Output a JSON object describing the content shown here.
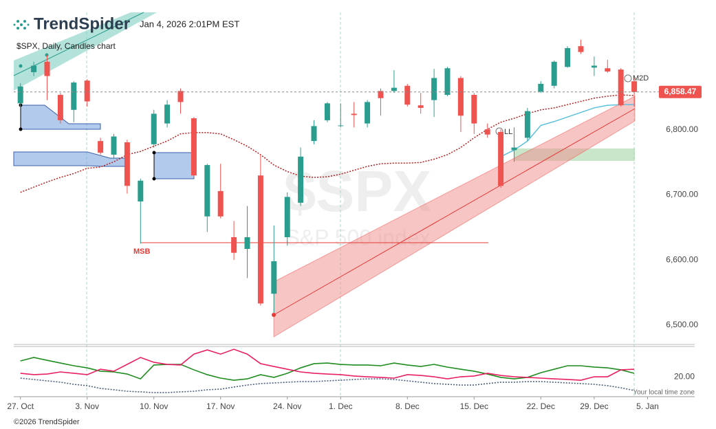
{
  "header": {
    "logo": "TrendSpider",
    "timestamp": "Jan 4, 2026 2:01PM EST"
  },
  "footer": "©2026 TrendSpider",
  "chart_data": [
    {
      "type": "candlestick",
      "title": "$SPX, Daily, Candles chart",
      "watermark": "$SPX",
      "watermark_subtitle": "S&P 500 index",
      "categories": [
        "27. Oct",
        null,
        null,
        null,
        null,
        "3. Nov",
        null,
        null,
        null,
        null,
        "10. Nov",
        null,
        null,
        null,
        null,
        "17. Nov",
        null,
        null,
        null,
        null,
        "24. Nov",
        null,
        null,
        null,
        "1. Dec",
        null,
        null,
        null,
        null,
        "8. Dec",
        null,
        null,
        null,
        null,
        "15. Dec",
        null,
        null,
        null,
        null,
        "22. Dec",
        null,
        null,
        null,
        "29. Dec",
        null,
        null,
        null,
        "5. Jan"
      ],
      "open": [
        6841,
        6889,
        6905,
        6854,
        6831,
        6876,
        6783,
        6762,
        6781,
        6690,
        6778,
        6810,
        6860,
        6818,
        6667,
        6706,
        6635,
        6617,
        6730,
        6548,
        6635,
        6688,
        6783,
        6815,
        6806,
        6825,
        6810,
        6860,
        6860,
        6868,
        6838,
        6846,
        6854,
        6880,
        6854,
        6801,
        6797,
        6769,
        6788,
        6859,
        6868,
        6897,
        6929,
        6896,
        6895,
        6893,
        6875,
        null
      ],
      "high": [
        6872,
        6905,
        6915,
        6857,
        6875,
        6878,
        6788,
        6794,
        6785,
        6725,
        6831,
        6846,
        6864,
        6820,
        6748,
        6748,
        6660,
        6683,
        6762,
        6653,
        6704,
        6773,
        6815,
        6843,
        6841,
        6843,
        6846,
        6864,
        6892,
        6871,
        6857,
        6894,
        6897,
        6883,
        6857,
        6810,
        6801,
        6804,
        6834,
        6875,
        6907,
        6929,
        6939,
        6913,
        6908,
        6895,
        6880,
        null
      ],
      "low": [
        6835,
        6883,
        6846,
        6810,
        6812,
        6836,
        6762,
        6757,
        6702,
        6625,
        6773,
        6804,
        6825,
        6727,
        6643,
        6664,
        6600,
        6572,
        6530,
        6519,
        6622,
        6683,
        6778,
        6812,
        6804,
        6804,
        6804,
        6822,
        6857,
        6836,
        6825,
        6820,
        6852,
        6797,
        6794,
        6788,
        6711,
        6751,
        6783,
        6857,
        6864,
        6896,
        6917,
        6883,
        6888,
        6836,
        6836,
        null
      ],
      "close": [
        6867,
        6899,
        6883,
        6815,
        6873,
        6844,
        6765,
        6790,
        6714,
        6722,
        6825,
        6839,
        6843,
        6730,
        6746,
        6667,
        6611,
        6635,
        6533,
        6598,
        6697,
        6759,
        6806,
        6841,
        6807,
        6823,
        6843,
        6849,
        6865,
        6839,
        6834,
        6880,
        6895,
        6822,
        6810,
        6793,
        6714,
        6773,
        6829,
        6871,
        6905,
        6926,
        6920,
        6899,
        6890,
        6838,
        6858.47,
        null
      ],
      "up_color": "#2a9d8f",
      "down_color": "#ef5350",
      "lines": [
        {
          "color": "#b71c1c",
          "style": "dotted",
          "values": [
            6704,
            6712,
            6720,
            6727,
            6733,
            6741,
            6743,
            6751,
            6762,
            6767,
            6775,
            6783,
            6794,
            6796,
            6796,
            6794,
            6785,
            6775,
            6762,
            6746,
            6736,
            6729,
            6727,
            6728,
            6732,
            6738,
            6744,
            6748,
            6749,
            6749,
            6750,
            6755,
            6762,
            6773,
            6788,
            6801,
            6812,
            6818,
            6825,
            6831,
            6834,
            6839,
            6844,
            6849,
            6852,
            6854,
            6853,
            null
          ]
        },
        {
          "color": "#5bc0de",
          "style": "solid",
          "values": [
            null,
            null,
            null,
            null,
            null,
            null,
            null,
            null,
            null,
            null,
            null,
            null,
            null,
            null,
            null,
            null,
            null,
            null,
            null,
            null,
            null,
            null,
            null,
            null,
            null,
            null,
            null,
            null,
            null,
            null,
            null,
            null,
            null,
            null,
            null,
            null,
            6759,
            6769,
            6783,
            6807,
            6813,
            6820,
            6827,
            6834,
            6838,
            6839,
            6839,
            null
          ]
        }
      ],
      "annotations": [
        "MSB",
        "LL",
        "M2D"
      ],
      "last_price": {
        "value": 6858.47,
        "label": "6,858.47"
      },
      "ylim": [
        6471,
        6981
      ],
      "yticks": [
        {
          "value": 6500,
          "label": "6,500.00"
        },
        {
          "value": 6600,
          "label": "6,600.00"
        },
        {
          "value": 6700,
          "label": "6,700.00"
        },
        {
          "value": 6800,
          "label": "6,800.00"
        }
      ]
    },
    {
      "type": "line",
      "xaxis_note": "Your local time zone",
      "series": [
        {
          "color": "#1e8c1e",
          "style": "solid",
          "values": [
            32.9,
            35.7,
            33.4,
            31.2,
            29.0,
            27.3,
            24.6,
            24.0,
            22.3,
            18.4,
            29.6,
            30.1,
            30.1,
            25.7,
            21.8,
            19.0,
            17.3,
            18.4,
            21.8,
            19.6,
            22.9,
            27.3,
            30.7,
            31.2,
            30.1,
            29.6,
            29.6,
            29.0,
            31.2,
            29.6,
            28.4,
            30.1,
            27.9,
            26.2,
            24.6,
            22.3,
            19.6,
            18.4,
            19.6,
            23.4,
            26.2,
            29.0,
            29.0,
            27.9,
            27.3,
            25.7,
            22.9,
            null
          ]
        },
        {
          "color": "#e91e63",
          "style": "solid",
          "values": [
            22.9,
            21.8,
            22.3,
            24.0,
            22.9,
            21.8,
            26.2,
            24.6,
            30.1,
            35.7,
            31.8,
            30.1,
            29.6,
            38.4,
            41.8,
            38.4,
            42.3,
            38.4,
            30.7,
            28.4,
            26.2,
            24.0,
            22.9,
            22.3,
            21.8,
            20.7,
            20.1,
            19.6,
            19.0,
            21.8,
            21.2,
            20.1,
            18.4,
            20.1,
            20.7,
            22.9,
            21.2,
            20.1,
            19.6,
            19.0,
            18.4,
            17.9,
            17.3,
            20.1,
            20.1,
            25.7,
            26.2,
            null
          ]
        },
        {
          "color": "#4a5d80",
          "style": "dotted",
          "values": [
            19.0,
            17.9,
            16.8,
            15.7,
            14.0,
            12.9,
            10.7,
            9.6,
            8.4,
            7.9,
            7.3,
            7.3,
            7.9,
            8.4,
            9.6,
            10.1,
            11.8,
            13.4,
            14.6,
            15.1,
            15.7,
            16.2,
            16.2,
            16.8,
            17.3,
            17.9,
            18.4,
            18.4,
            17.9,
            16.8,
            15.7,
            14.6,
            14.0,
            13.4,
            13.4,
            14.6,
            15.7,
            15.7,
            16.2,
            16.2,
            15.7,
            15.1,
            14.6,
            14.0,
            12.9,
            11.2,
            9.0,
            null
          ]
        }
      ],
      "ylim": [
        4,
        44
      ],
      "yticks": [
        {
          "value": 20,
          "label": "20.00"
        }
      ]
    }
  ]
}
